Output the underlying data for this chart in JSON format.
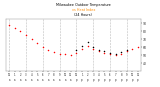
{
  "title1": "Milwaukee Outdoor Temperature",
  "title2": "vs Heat Index",
  "title3": "(24 Hours)",
  "title2_color": "#ff8c00",
  "background_color": "#ffffff",
  "grid_color": "#bbbbbb",
  "ylim": [
    30,
    95
  ],
  "yticks": [
    40,
    50,
    60,
    70,
    80,
    90
  ],
  "ytick_labels": [
    "40",
    "50",
    "60",
    "70",
    "80",
    "90"
  ],
  "hours": [
    0,
    1,
    2,
    3,
    4,
    5,
    6,
    7,
    8,
    9,
    10,
    11,
    12,
    13,
    14,
    15,
    16,
    17,
    18,
    19,
    20,
    21,
    22,
    23
  ],
  "temp": [
    88,
    84,
    80,
    75,
    70,
    65,
    60,
    57,
    54,
    52,
    51,
    50,
    53,
    58,
    62,
    58,
    55,
    53,
    51,
    50,
    52,
    55,
    58,
    60
  ],
  "heat_index": [
    null,
    null,
    null,
    null,
    null,
    null,
    null,
    null,
    null,
    null,
    null,
    null,
    57,
    62,
    66,
    60,
    57,
    55,
    53,
    52,
    54,
    57,
    null,
    null
  ],
  "temp_color": "#ff0000",
  "heat_color": "#000000",
  "xtick_labels": [
    "12",
    "1",
    "2",
    "3",
    "4",
    "5",
    "6",
    "7",
    "8",
    "9",
    "10",
    "11",
    "12",
    "1",
    "2",
    "3",
    "4",
    "5",
    "6",
    "7",
    "8",
    "9",
    "10",
    "11"
  ],
  "xtick_ampm": [
    "a",
    "a",
    "a",
    "a",
    "a",
    "a",
    "a",
    "a",
    "a",
    "a",
    "a",
    "a",
    "p",
    "p",
    "p",
    "p",
    "p",
    "p",
    "p",
    "p",
    "p",
    "p",
    "p",
    "p"
  ],
  "vgrid_positions": [
    0,
    3,
    6,
    9,
    12,
    15,
    18,
    21
  ]
}
